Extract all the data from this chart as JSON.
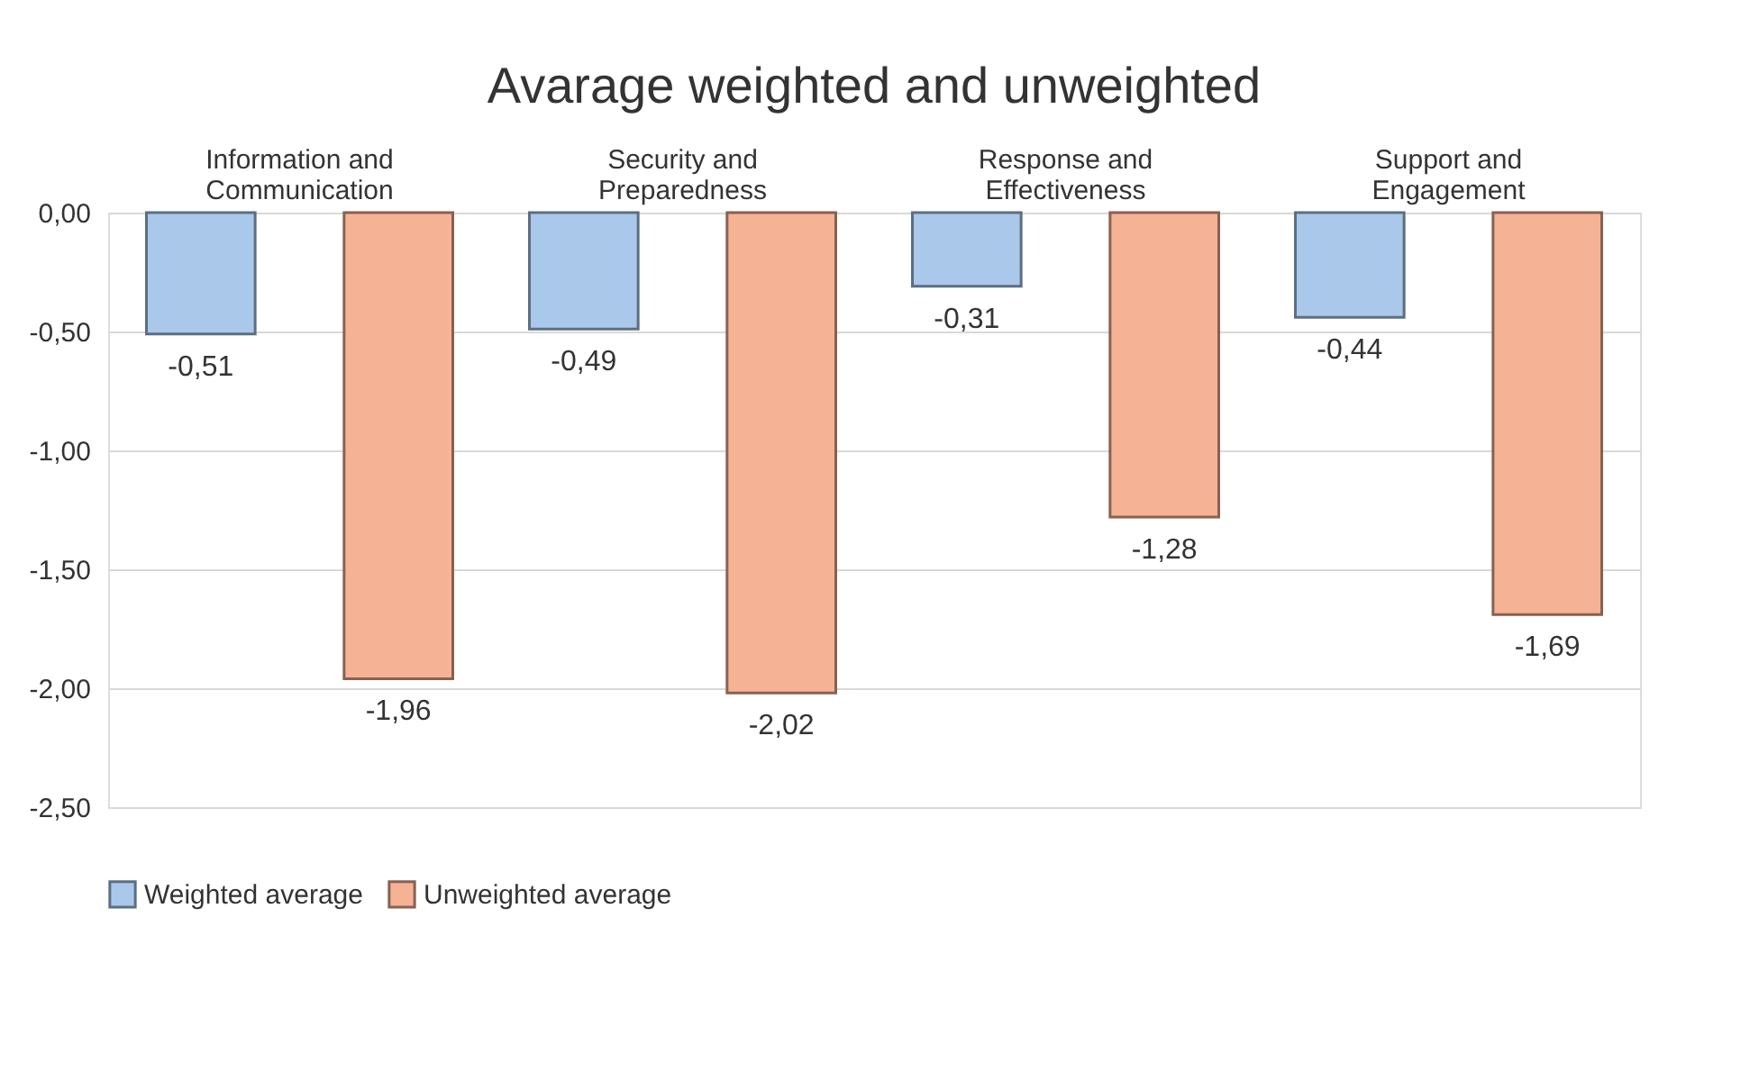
{
  "chart_data": {
    "type": "bar",
    "title": "Avarage weighted and unweighted",
    "categories": [
      "Information and Communication",
      "Security and Preparedness",
      "Response and Effectiveness",
      "Support and Engagement"
    ],
    "series": [
      {
        "name": "Weighted average",
        "color": "#a9c8ea",
        "values": [
          -0.51,
          -0.49,
          -0.31,
          -0.44
        ],
        "value_labels": [
          "-0,51",
          "-0,49",
          "-0,31",
          "-0,44"
        ]
      },
      {
        "name": "Unweighted average",
        "color": "#f6b295",
        "values": [
          -1.96,
          -2.02,
          -1.28,
          -1.69
        ],
        "value_labels": [
          "-1,96",
          "-2,02",
          "-1,28",
          "-1,69"
        ]
      }
    ],
    "ylim": [
      -2.5,
      0
    ],
    "yticks": [
      {
        "value": 0,
        "label": "0,00"
      },
      {
        "value": -0.5,
        "label": "-0,50"
      },
      {
        "value": -1,
        "label": "-1,00"
      },
      {
        "value": -1.5,
        "label": "-1,50"
      },
      {
        "value": -2,
        "label": "-2,00"
      },
      {
        "value": -2.5,
        "label": "-2,50"
      }
    ],
    "grid": "y",
    "legend": "bottom"
  }
}
